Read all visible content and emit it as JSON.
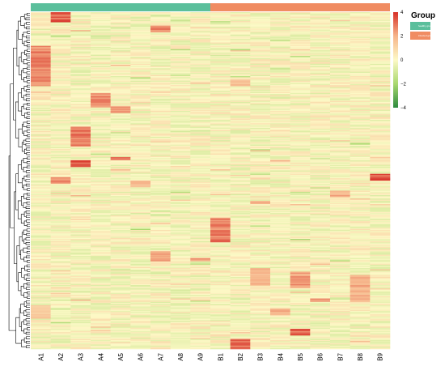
{
  "chart_data": {
    "type": "heatmap",
    "columns": [
      "A1",
      "A2",
      "A3",
      "A4",
      "A5",
      "A6",
      "A7",
      "A8",
      "A9",
      "B1",
      "B2",
      "B3",
      "B4",
      "B5",
      "B6",
      "B7",
      "B8",
      "B9"
    ],
    "groups": [
      {
        "name": "healthy group",
        "columns": [
          "A1",
          "A2",
          "A3",
          "A4",
          "A5",
          "A6",
          "A7",
          "A8",
          "A9"
        ],
        "color": "#5bbf9c"
      },
      {
        "name": "infected group",
        "columns": [
          "B1",
          "B2",
          "B3",
          "B4",
          "B5",
          "B6",
          "B7",
          "B8",
          "B9"
        ],
        "color": "#f08c62"
      }
    ],
    "legend_title": "Group",
    "color_scale": {
      "ticks": [
        4,
        2,
        0,
        -2,
        -4
      ],
      "min": -4,
      "max": 4,
      "colors": [
        "#2e8b3e",
        "#a9d86e",
        "#fdf9c6",
        "#f6b48a",
        "#d73027"
      ]
    },
    "row_count": 300,
    "row_dendrogram": true,
    "clusters": [
      {
        "col": "A1",
        "from": 0.1,
        "to": 0.22,
        "value": 3.0
      },
      {
        "col": "A1",
        "from": 0.87,
        "to": 0.91,
        "value": 1.5
      },
      {
        "col": "A2",
        "from": 0.0,
        "to": 0.03,
        "value": 3.6
      },
      {
        "col": "A2",
        "from": 0.49,
        "to": 0.51,
        "value": 2.8
      },
      {
        "col": "A3",
        "from": 0.34,
        "to": 0.4,
        "value": 3.2
      },
      {
        "col": "A3",
        "from": 0.44,
        "to": 0.46,
        "value": 3.8
      },
      {
        "col": "A4",
        "from": 0.24,
        "to": 0.28,
        "value": 3.0
      },
      {
        "col": "A5",
        "from": 0.28,
        "to": 0.3,
        "value": 2.8
      },
      {
        "col": "A5",
        "from": 0.43,
        "to": 0.44,
        "value": 3.4
      },
      {
        "col": "A6",
        "from": 0.5,
        "to": 0.52,
        "value": 2.2
      },
      {
        "col": "A7",
        "from": 0.04,
        "to": 0.06,
        "value": 2.8
      },
      {
        "col": "A7",
        "from": 0.71,
        "to": 0.74,
        "value": 2.4
      },
      {
        "col": "A9",
        "from": 0.73,
        "to": 0.74,
        "value": 2.4
      },
      {
        "col": "B1",
        "from": 0.61,
        "to": 0.68,
        "value": 3.2
      },
      {
        "col": "B2",
        "from": 0.2,
        "to": 0.22,
        "value": 1.8
      },
      {
        "col": "B2",
        "from": 0.97,
        "to": 1.0,
        "value": 3.4
      },
      {
        "col": "B3",
        "from": 0.76,
        "to": 0.81,
        "value": 2.0
      },
      {
        "col": "B3",
        "from": 0.56,
        "to": 0.57,
        "value": 2.4
      },
      {
        "col": "B4",
        "from": 0.88,
        "to": 0.9,
        "value": 2.4
      },
      {
        "col": "B5",
        "from": 0.77,
        "to": 0.82,
        "value": 2.6
      },
      {
        "col": "B5",
        "from": 0.94,
        "to": 0.96,
        "value": 3.4
      },
      {
        "col": "B6",
        "from": 0.85,
        "to": 0.86,
        "value": 2.6
      },
      {
        "col": "B7",
        "from": 0.53,
        "to": 0.55,
        "value": 2.2
      },
      {
        "col": "B8",
        "from": 0.78,
        "to": 0.86,
        "value": 2.2
      },
      {
        "col": "B9",
        "from": 0.48,
        "to": 0.5,
        "value": 3.8
      }
    ]
  }
}
